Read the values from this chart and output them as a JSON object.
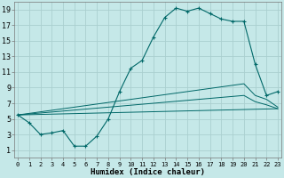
{
  "xlabel": "Humidex (Indice chaleur)",
  "background_color": "#c5e8e8",
  "grid_color": "#aacfcf",
  "line_color": "#006868",
  "xlim": [
    0,
    23
  ],
  "ylim": [
    0,
    20
  ],
  "xtick_labels": [
    "0",
    "1",
    "2",
    "3",
    "4",
    "5",
    "6",
    "7",
    "8",
    "9",
    "10",
    "11",
    "12",
    "13",
    "14",
    "15",
    "16",
    "17",
    "18",
    "19",
    "20",
    "21",
    "22",
    "23"
  ],
  "ytick_values": [
    1,
    3,
    5,
    7,
    9,
    11,
    13,
    15,
    17,
    19
  ],
  "curve1_x": [
    0,
    1,
    2,
    3,
    4,
    5,
    6,
    7,
    8,
    9,
    10,
    11,
    12,
    13,
    14,
    15,
    16,
    17,
    18,
    19,
    20,
    21,
    22,
    23
  ],
  "curve1_y": [
    5.5,
    4.5,
    3.0,
    3.2,
    3.5,
    1.5,
    1.5,
    2.8,
    5.0,
    8.5,
    11.5,
    12.5,
    15.5,
    18.0,
    19.2,
    18.8,
    19.2,
    18.5,
    17.8,
    17.5,
    17.5,
    12.0,
    8.0,
    8.5
  ],
  "curve2_x": [
    0,
    23
  ],
  "curve2_y": [
    5.5,
    6.3
  ],
  "curve3_x": [
    0,
    20,
    21,
    22,
    23
  ],
  "curve3_y": [
    5.5,
    9.5,
    8.0,
    7.5,
    6.5
  ],
  "curve4_x": [
    0,
    20,
    21,
    22,
    23
  ],
  "curve4_y": [
    5.5,
    8.0,
    7.2,
    6.8,
    6.3
  ]
}
